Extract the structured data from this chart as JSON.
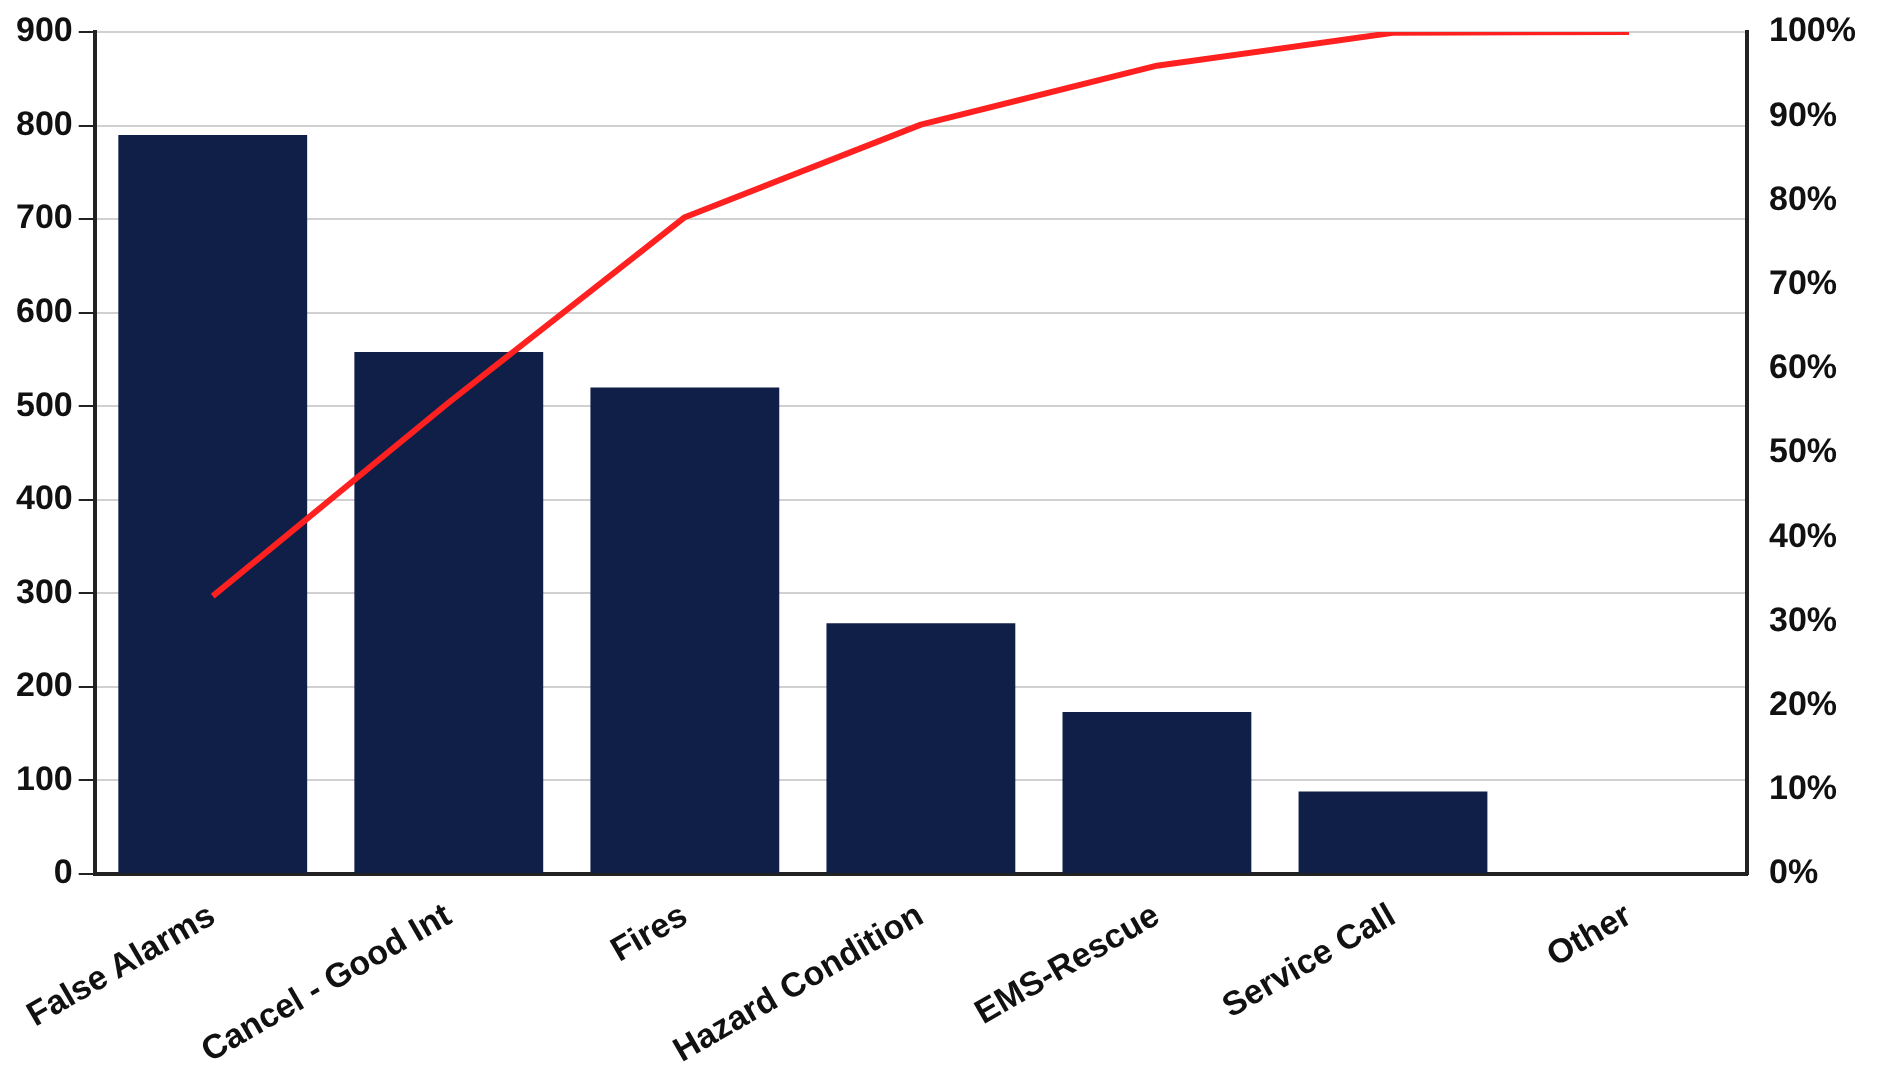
{
  "chart_data": {
    "type": "bar",
    "categories": [
      "False Alarms",
      "Cancel - Good Int",
      "Fires",
      "Hazard Condition",
      "EMS-Rescue",
      "Service Call",
      "Other"
    ],
    "series": [
      {
        "type": "bar",
        "color": "#101f47",
        "values": [
          790,
          558,
          520,
          268,
          173,
          88,
          null
        ]
      },
      {
        "type": "line",
        "axis": "y2",
        "color": "#ff2020",
        "marker": "none",
        "values": [
          33,
          56,
          78,
          89,
          96,
          99.9,
          100
        ]
      }
    ],
    "ylim": [
      0,
      900
    ],
    "yticks": [
      0,
      100,
      200,
      300,
      400,
      500,
      600,
      700,
      800,
      900
    ],
    "y2lim": [
      0,
      100
    ],
    "y2ticks": [
      {
        "value": 0,
        "label": "0%"
      },
      {
        "value": 10,
        "label": "10%"
      },
      {
        "value": 20,
        "label": "20%"
      },
      {
        "value": 30,
        "label": "30%"
      },
      {
        "value": 40,
        "label": "40%"
      },
      {
        "value": 50,
        "label": "50%"
      },
      {
        "value": 60,
        "label": "60%"
      },
      {
        "value": 70,
        "label": "70%"
      },
      {
        "value": 80,
        "label": "80%"
      },
      {
        "value": 90,
        "label": "90%"
      },
      {
        "value": 100,
        "label": "100%"
      }
    ],
    "grid": "y",
    "legend": false
  }
}
